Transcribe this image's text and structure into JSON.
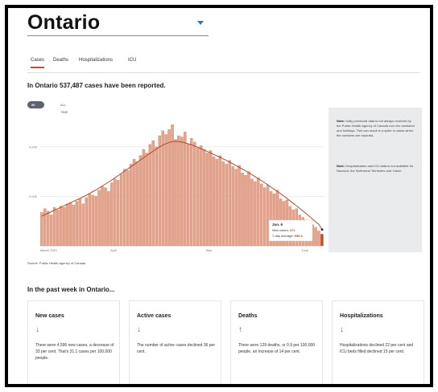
{
  "region": {
    "name": "Ontario"
  },
  "tabs": [
    {
      "label": "Cases",
      "active": true
    },
    {
      "label": "Deaths",
      "active": false
    },
    {
      "label": "Hospitalizations",
      "active": false
    },
    {
      "label": "ICU",
      "active": false
    }
  ],
  "headline": "In Ontario 537,487 cases have been reported.",
  "range": {
    "active": "90 DAYS",
    "other": "ALL TIME"
  },
  "chart_data": {
    "type": "bar",
    "x_ticks": [
      "March 2021",
      "April",
      "May",
      "June"
    ],
    "y_ticks": [
      {
        "label": "4,000",
        "value": 4000
      },
      {
        "label": "2,000",
        "value": 2000
      }
    ],
    "ylim": [
      0,
      5000
    ],
    "values": [
      1350,
      1500,
      1400,
      1250,
      1550,
      1450,
      1600,
      1550,
      1700,
      1750,
      1650,
      1800,
      1900,
      1700,
      1950,
      2100,
      2050,
      2000,
      2250,
      2400,
      2350,
      2200,
      2550,
      2700,
      2650,
      2900,
      3100,
      3050,
      3300,
      3500,
      3400,
      3650,
      3900,
      3750,
      4100,
      4250,
      4000,
      4450,
      4650,
      4500,
      4700,
      4900,
      4300,
      4450,
      4400,
      4600,
      4100,
      4350,
      4200,
      3950,
      4050,
      3900,
      3750,
      3850,
      3600,
      3500,
      3650,
      3400,
      3300,
      3450,
      3200,
      3100,
      3250,
      2950,
      2850,
      3000,
      2700,
      2600,
      2750,
      2500,
      2350,
      2450,
      2200,
      2100,
      2250,
      1900,
      1800,
      1850,
      1600,
      1450,
      1500,
      1250,
      1150,
      1050,
      950,
      850,
      750,
      600,
      471
    ],
    "average": [
      1200,
      1260,
      1320,
      1380,
      1440,
      1500,
      1560,
      1620,
      1680,
      1740,
      1800,
      1860,
      1920,
      1980,
      2050,
      2120,
      2190,
      2260,
      2340,
      2420,
      2500,
      2580,
      2660,
      2750,
      2840,
      2930,
      3020,
      3110,
      3200,
      3290,
      3380,
      3470,
      3560,
      3650,
      3740,
      3830,
      3920,
      4000,
      4070,
      4130,
      4180,
      4210,
      4220,
      4210,
      4190,
      4160,
      4120,
      4080,
      4030,
      3980,
      3930,
      3870,
      3810,
      3750,
      3690,
      3630,
      3570,
      3510,
      3450,
      3380,
      3310,
      3240,
      3170,
      3100,
      3030,
      2950,
      2870,
      2790,
      2710,
      2630,
      2550,
      2460,
      2370,
      2280,
      2190,
      2100,
      2010,
      1910,
      1810,
      1710,
      1610,
      1510,
      1410,
      1300,
      1190,
      1080,
      970,
      860,
      656
    ],
    "tooltip": {
      "date": "Jun. 6",
      "new_cases_label": "New cases:",
      "new_cases": "471",
      "avg_label": "7-day average:",
      "avg": "656.6"
    },
    "colors": {
      "bar": "#e3a48b",
      "bar_edge": "#c9745a",
      "line": "#b5472a",
      "latest": "#c64b2c"
    }
  },
  "notes": [
    {
      "bold": "Note:",
      "text": "Daily provincial data is not always received by the Public Health Agency of Canada over the weekend and holidays. This can result in a spike in cases when the numbers are reported."
    },
    {
      "bold": "Note:",
      "text": "Hospitalization and ICU data is not available for Nunavut, the Northwest Territories and Yukon."
    }
  ],
  "source": "Source: Public Health Agency of Canada",
  "week_title": "In the past week in Ontario...",
  "cards": [
    {
      "title": "New cases",
      "icon": "arrow-down-icon",
      "color": "#c64b2c",
      "text": "There were 4,596 new cases, a decrease of 33 per cent. That's 31.1 cases per 100,000 people."
    },
    {
      "title": "Active cases",
      "icon": "arrow-down-icon",
      "color": "#c64b2c",
      "text": "The number of active cases declined 36 per cent."
    },
    {
      "title": "Deaths",
      "icon": "arrow-up-icon",
      "color": "#2a7ab0",
      "text": "There were 129 deaths, or 0.9 per 100,000 people, an increase of 14 per cent."
    },
    {
      "title": "Hospitalizations",
      "icon": "arrow-down-icon",
      "color": "#8a3a9c",
      "text": "Hospitalizations declined 22 per cent and ICU beds filled declined 15 per cent."
    }
  ]
}
